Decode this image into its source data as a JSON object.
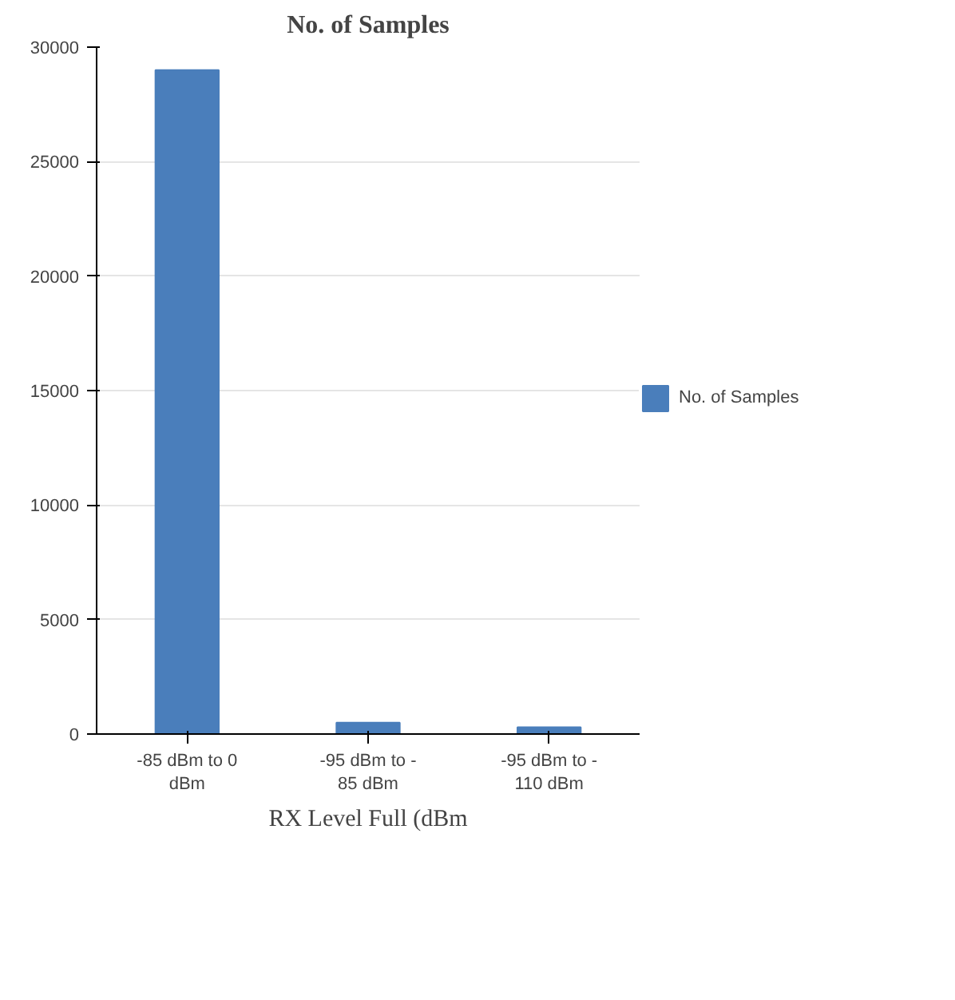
{
  "chart_data": {
    "type": "bar",
    "title": "No. of Samples",
    "xlabel": "RX Level Full (dBm",
    "categories": [
      "-85 dBm to 0\ndBm",
      "-95 dBm to -\n85 dBm",
      "-95 dBm to -\n110 dBm"
    ],
    "series": [
      {
        "name": "No. of Samples",
        "color": "#4a7ebb",
        "values": [
          29000,
          500,
          300
        ]
      }
    ],
    "ylim": [
      0,
      30000
    ],
    "yticks": [
      0,
      5000,
      10000,
      15000,
      20000,
      25000,
      30000
    ],
    "grid": "y",
    "legend": "right"
  }
}
